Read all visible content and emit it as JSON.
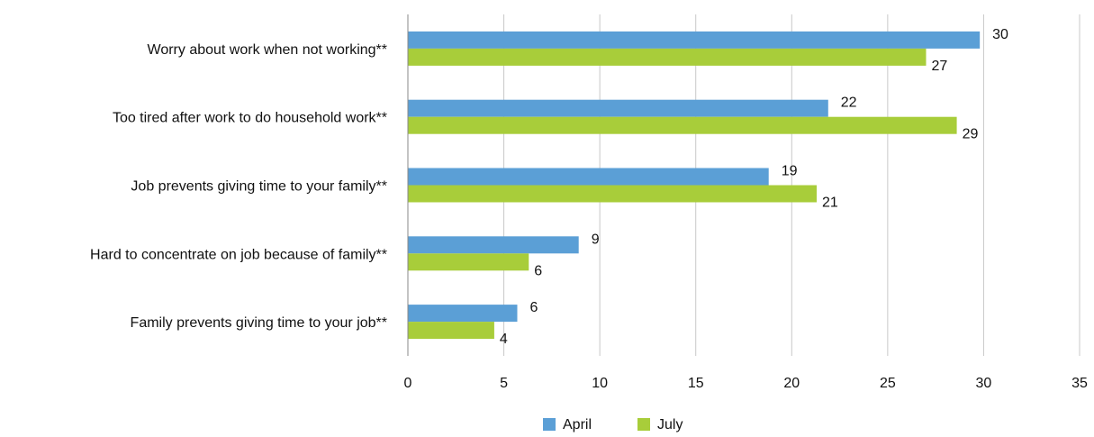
{
  "chart_data": {
    "type": "bar",
    "orientation": "horizontal",
    "title": "",
    "xlabel": "",
    "ylabel": "",
    "categories": [
      "Worry about work when not working**",
      "Too tired after work to do household work**",
      "Job prevents giving time to your family**",
      "Hard to concentrate on job because of family**",
      "Family prevents giving time to your job**"
    ],
    "series": [
      {
        "name": "April",
        "color": "#5b9fd6",
        "values": [
          29.8,
          21.9,
          18.8,
          8.9,
          5.7
        ],
        "labels": [
          "30",
          "22",
          "19",
          "9",
          "6"
        ]
      },
      {
        "name": "July",
        "color": "#a8cd3a",
        "values": [
          27.0,
          28.6,
          21.3,
          6.3,
          4.5
        ],
        "labels": [
          "27",
          "29",
          "21",
          "6",
          "4"
        ]
      }
    ],
    "xlim": [
      0,
      35
    ],
    "xticks": [
      "0",
      "5",
      "10",
      "15",
      "20",
      "25",
      "30",
      "35"
    ],
    "grid": true,
    "legend_position": "bottom"
  }
}
